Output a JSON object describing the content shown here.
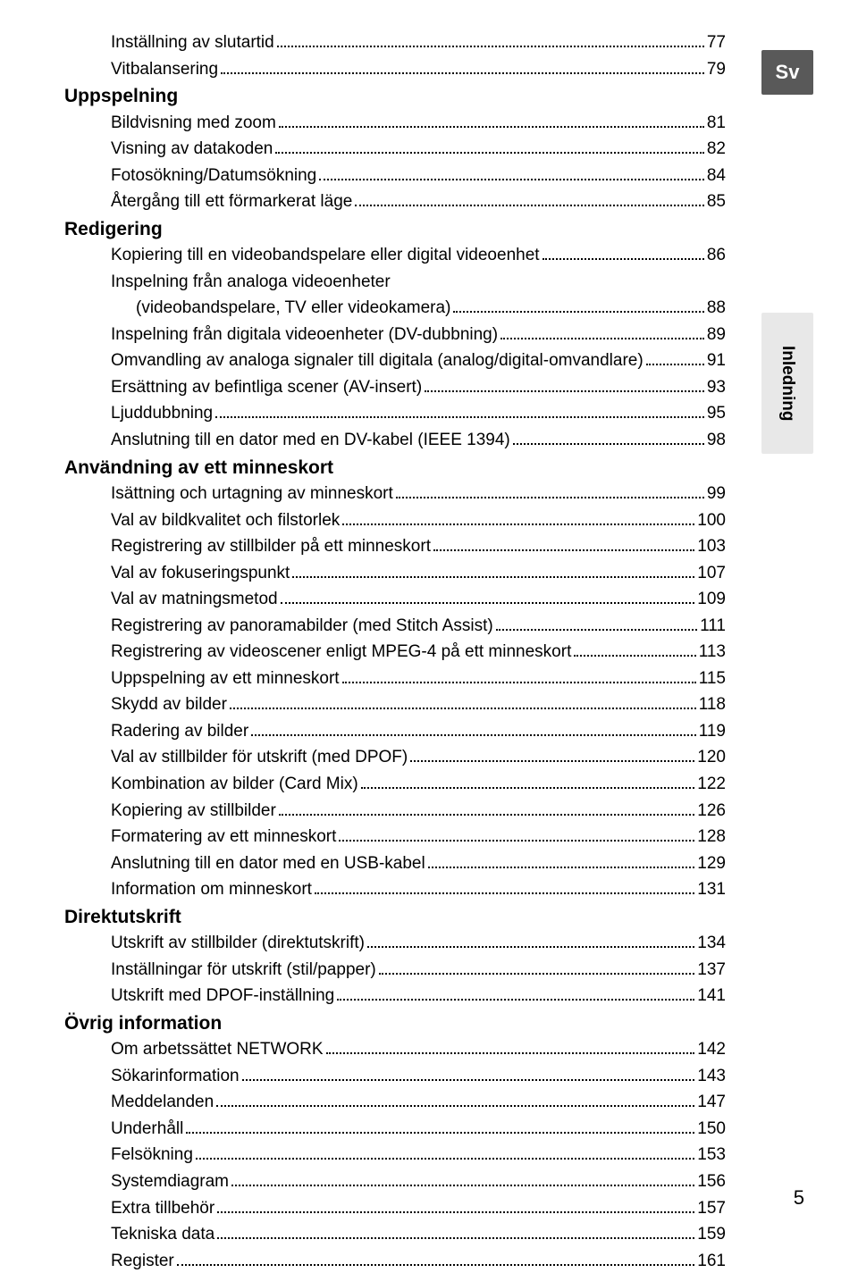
{
  "language_tab": "Sv",
  "section_tab": "Inledning",
  "page_number": "5",
  "sections": [
    {
      "heading": null,
      "items": [
        {
          "label": "Inställning av slutartid",
          "page": "77",
          "indent": 1
        },
        {
          "label": "Vitbalansering",
          "page": "79",
          "indent": 1
        }
      ]
    },
    {
      "heading": "Uppspelning",
      "items": [
        {
          "label": "Bildvisning med zoom",
          "page": "81",
          "indent": 1
        },
        {
          "label": "Visning av datakoden",
          "page": "82",
          "indent": 1
        },
        {
          "label": "Fotosökning/Datumsökning",
          "page": "84",
          "indent": 1
        },
        {
          "label": "Återgång till ett förmarkerat läge",
          "page": "85",
          "indent": 1
        }
      ]
    },
    {
      "heading": "Redigering",
      "items": [
        {
          "label": "Kopiering till en videobandspelare eller digital videoenhet",
          "page": "86",
          "indent": 1
        },
        {
          "label": "Inspelning från analoga videoenheter",
          "page": null,
          "indent": 1
        },
        {
          "label": "(videobandspelare, TV eller videokamera)",
          "page": "88",
          "indent": 2
        },
        {
          "label": "Inspelning från digitala videoenheter (DV-dubbning)",
          "page": "89",
          "indent": 1
        },
        {
          "label": "Omvandling av analoga signaler till digitala (analog/digital-omvandlare)",
          "page": "91",
          "indent": 1
        },
        {
          "label": "Ersättning av befintliga scener (AV-insert)",
          "page": "93",
          "indent": 1
        },
        {
          "label": "Ljuddubbning",
          "page": "95",
          "indent": 1
        },
        {
          "label": "Anslutning till en dator med en DV-kabel (IEEE 1394)",
          "page": "98",
          "indent": 1
        }
      ]
    },
    {
      "heading": "Användning av ett minneskort",
      "items": [
        {
          "label": "Isättning och urtagning av minneskort",
          "page": "99",
          "indent": 1
        },
        {
          "label": "Val av bildkvalitet och filstorlek",
          "page": "100",
          "indent": 1
        },
        {
          "label": "Registrering av stillbilder på ett minneskort",
          "page": "103",
          "indent": 1
        },
        {
          "label": "Val av fokuseringspunkt",
          "page": "107",
          "indent": 1
        },
        {
          "label": "Val av matningsmetod",
          "page": "109",
          "indent": 1
        },
        {
          "label": "Registrering av panoramabilder (med Stitch Assist)",
          "page": "111",
          "indent": 1
        },
        {
          "label": "Registrering av videoscener enligt MPEG-4 på ett minneskort",
          "page": "113",
          "indent": 1
        },
        {
          "label": "Uppspelning av ett minneskort",
          "page": "115",
          "indent": 1
        },
        {
          "label": "Skydd av bilder",
          "page": "118",
          "indent": 1
        },
        {
          "label": "Radering av bilder",
          "page": "119",
          "indent": 1
        },
        {
          "label": "Val av stillbilder för utskrift (med DPOF)",
          "page": "120",
          "indent": 1
        },
        {
          "label": "Kombination av bilder (Card Mix)",
          "page": "122",
          "indent": 1
        },
        {
          "label": "Kopiering av stillbilder",
          "page": "126",
          "indent": 1
        },
        {
          "label": "Formatering av ett minneskort",
          "page": "128",
          "indent": 1
        },
        {
          "label": "Anslutning till en dator med en USB-kabel",
          "page": "129",
          "indent": 1
        },
        {
          "label": "Information om minneskort",
          "page": "131",
          "indent": 1
        }
      ]
    },
    {
      "heading": "Direktutskrift",
      "items": [
        {
          "label": "Utskrift av stillbilder (direktutskrift)",
          "page": "134",
          "indent": 1
        },
        {
          "label": "Inställningar för utskrift (stil/papper)",
          "page": "137",
          "indent": 1
        },
        {
          "label": "Utskrift med DPOF-inställning",
          "page": "141",
          "indent": 1
        }
      ]
    },
    {
      "heading": "Övrig information",
      "items": [
        {
          "label": "Om arbetssättet NETWORK",
          "page": "142",
          "indent": 1
        },
        {
          "label": "Sökarinformation",
          "page": "143",
          "indent": 1
        },
        {
          "label": "Meddelanden",
          "page": "147",
          "indent": 1
        },
        {
          "label": "Underhåll",
          "page": "150",
          "indent": 1
        },
        {
          "label": "Felsökning",
          "page": "153",
          "indent": 1
        },
        {
          "label": "Systemdiagram",
          "page": "156",
          "indent": 1
        },
        {
          "label": "Extra tillbehör",
          "page": "157",
          "indent": 1
        },
        {
          "label": "Tekniska data",
          "page": "159",
          "indent": 1
        },
        {
          "label": "Register",
          "page": "161",
          "indent": 1
        }
      ]
    }
  ]
}
